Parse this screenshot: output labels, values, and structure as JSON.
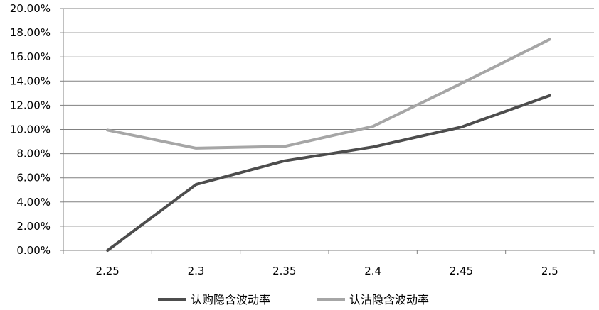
{
  "chart_data": {
    "type": "line",
    "title": "",
    "xlabel": "",
    "ylabel": "",
    "categories": [
      "2.25",
      "2.3",
      "2.35",
      "2.4",
      "2.45",
      "2.5"
    ],
    "y_ticks": [
      "0.00%",
      "2.00%",
      "4.00%",
      "6.00%",
      "8.00%",
      "10.00%",
      "12.00%",
      "14.00%",
      "16.00%",
      "18.00%",
      "20.00%"
    ],
    "ylim": [
      0,
      20
    ],
    "y_unit": "%",
    "grid": true,
    "legend_position": "bottom",
    "series": [
      {
        "name": "认购隐含波动率",
        "color": "#4d4d4d",
        "values": [
          0.0,
          5.45,
          7.4,
          8.55,
          10.2,
          12.8
        ]
      },
      {
        "name": "认沽隐含波动率",
        "color": "#a6a6a6",
        "values": [
          9.95,
          8.45,
          8.6,
          10.25,
          13.8,
          17.45
        ]
      }
    ]
  }
}
